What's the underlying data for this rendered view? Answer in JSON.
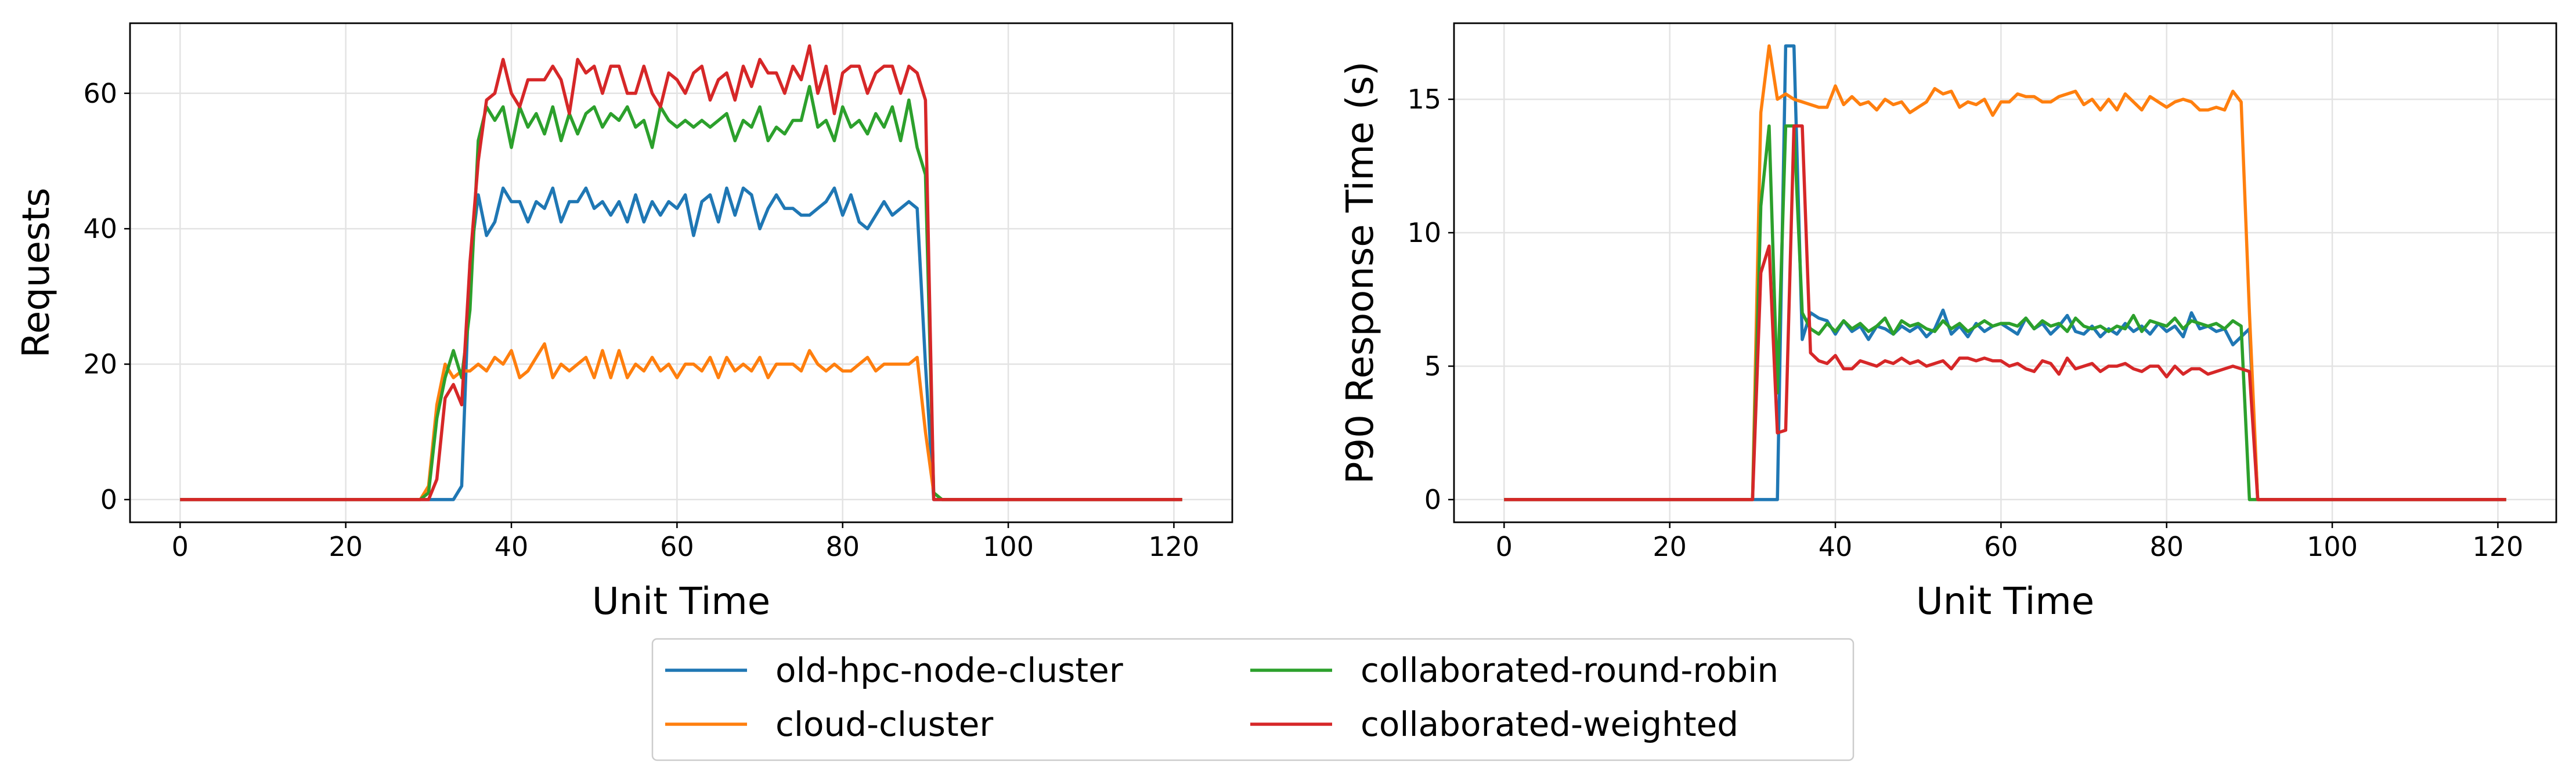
{
  "chart_data": [
    {
      "type": "line",
      "xlabel": "Unit Time",
      "ylabel": "Requests",
      "x": [
        0,
        29,
        30,
        31,
        32,
        33,
        34,
        35,
        36,
        37,
        38,
        39,
        40,
        41,
        42,
        43,
        44,
        45,
        46,
        47,
        48,
        49,
        50,
        51,
        52,
        53,
        54,
        55,
        56,
        57,
        58,
        59,
        60,
        61,
        62,
        63,
        64,
        65,
        66,
        67,
        68,
        69,
        70,
        71,
        72,
        73,
        74,
        75,
        76,
        77,
        78,
        79,
        80,
        81,
        82,
        83,
        84,
        85,
        86,
        87,
        88,
        89,
        90,
        91,
        92,
        121
      ],
      "xlim": [
        -6.05,
        127.05
      ],
      "xticks": [
        0,
        20,
        40,
        60,
        80,
        100,
        120
      ],
      "ylim": [
        -3.35,
        70.35
      ],
      "yticks": [
        0,
        20,
        40,
        60
      ],
      "grid": true,
      "legend": "bottom",
      "series": [
        {
          "name": "old-hpc-node-cluster",
          "color": "#1f77b4",
          "values": [
            0,
            0,
            0,
            0,
            0,
            0,
            2,
            35,
            45,
            39,
            41,
            46,
            44,
            44,
            41,
            44,
            43,
            46,
            41,
            44,
            44,
            46,
            43,
            44,
            42,
            44,
            41,
            45,
            41,
            44,
            42,
            44,
            43,
            45,
            39,
            44,
            45,
            41,
            46,
            42,
            46,
            45,
            40,
            43,
            45,
            43,
            43,
            42,
            42,
            43,
            44,
            46,
            42,
            45,
            41,
            40,
            42,
            44,
            42,
            43,
            44,
            43,
            20,
            0,
            0,
            0
          ]
        },
        {
          "name": "cloud-cluster",
          "color": "#ff7f0e",
          "values": [
            0,
            0,
            2,
            14,
            20,
            18,
            19,
            19,
            20,
            19,
            21,
            20,
            22,
            18,
            19,
            21,
            23,
            18,
            20,
            19,
            20,
            21,
            18,
            22,
            18,
            22,
            18,
            20,
            19,
            21,
            19,
            20,
            18,
            20,
            20,
            19,
            21,
            18,
            21,
            19,
            20,
            19,
            21,
            18,
            20,
            20,
            20,
            19,
            22,
            20,
            19,
            20,
            19,
            19,
            20,
            21,
            19,
            20,
            20,
            20,
            20,
            21,
            10,
            1,
            0,
            0
          ]
        },
        {
          "name": "collaborated-round-robin",
          "color": "#2ca02c",
          "values": [
            0,
            0,
            1,
            12,
            18,
            22,
            18,
            28,
            53,
            58,
            56,
            58,
            52,
            58,
            55,
            57,
            54,
            58,
            53,
            57,
            54,
            57,
            58,
            55,
            57,
            56,
            58,
            55,
            56,
            52,
            58,
            56,
            55,
            56,
            55,
            56,
            55,
            56,
            57,
            53,
            56,
            55,
            58,
            53,
            55,
            54,
            56,
            56,
            61,
            55,
            56,
            53,
            58,
            55,
            56,
            54,
            57,
            55,
            58,
            53,
            59,
            52,
            48,
            1,
            0,
            0
          ]
        },
        {
          "name": "collaborated-weighted",
          "color": "#d62728",
          "values": [
            0,
            0,
            0,
            3,
            15,
            17,
            14,
            35,
            50,
            59,
            60,
            65,
            60,
            58,
            62,
            62,
            62,
            64,
            62,
            57,
            65,
            63,
            64,
            60,
            64,
            64,
            60,
            60,
            64,
            60,
            58,
            63,
            62,
            60,
            63,
            64,
            59,
            62,
            63,
            59,
            64,
            61,
            65,
            63,
            63,
            60,
            64,
            62,
            67,
            60,
            64,
            57,
            63,
            64,
            64,
            60,
            63,
            64,
            64,
            60,
            64,
            63,
            59,
            0,
            0,
            0
          ]
        }
      ]
    },
    {
      "type": "line",
      "xlabel": "Unit Time",
      "ylabel": "P90 Response Time (s)",
      "x": [
        0,
        29,
        30,
        31,
        32,
        33,
        34,
        35,
        36,
        37,
        38,
        39,
        40,
        41,
        42,
        43,
        44,
        45,
        46,
        47,
        48,
        49,
        50,
        51,
        52,
        53,
        54,
        55,
        56,
        57,
        58,
        59,
        60,
        61,
        62,
        63,
        64,
        65,
        66,
        67,
        68,
        69,
        70,
        71,
        72,
        73,
        74,
        75,
        76,
        77,
        78,
        79,
        80,
        81,
        82,
        83,
        84,
        85,
        86,
        87,
        88,
        89,
        90,
        91,
        92,
        121
      ],
      "xlim": [
        -6.05,
        127.05
      ],
      "xticks": [
        0,
        20,
        40,
        60,
        80,
        100,
        120
      ],
      "ylim": [
        -0.85,
        17.85
      ],
      "yticks": [
        0,
        5,
        10,
        15
      ],
      "grid": true,
      "series": [
        {
          "name": "old-hpc-node-cluster",
          "color": "#1f77b4",
          "values": [
            0,
            0,
            0,
            0,
            0,
            0,
            17,
            17,
            6,
            7,
            6.8,
            6.7,
            6.2,
            6.7,
            6.3,
            6.5,
            6.0,
            6.5,
            6.4,
            6.2,
            6.5,
            6.3,
            6.5,
            6.1,
            6.4,
            7.1,
            6.2,
            6.5,
            6.1,
            6.6,
            6.3,
            6.5,
            6.6,
            6.4,
            6.2,
            6.8,
            6.4,
            6.6,
            6.2,
            6.5,
            6.9,
            6.3,
            6.2,
            6.5,
            6.1,
            6.4,
            6.2,
            6.6,
            6.3,
            6.5,
            6.2,
            6.6,
            6.3,
            6.5,
            6.1,
            7.0,
            6.4,
            6.5,
            6.3,
            6.4,
            5.8,
            6.1,
            6.4,
            0,
            0,
            0
          ]
        },
        {
          "name": "cloud-cluster",
          "color": "#ff7f0e",
          "values": [
            0,
            0,
            0,
            14.5,
            17,
            15,
            15.2,
            15,
            14.9,
            14.8,
            14.7,
            14.7,
            15.5,
            14.8,
            15.1,
            14.8,
            14.9,
            14.6,
            15.0,
            14.8,
            14.9,
            14.5,
            14.7,
            14.9,
            15.4,
            15.2,
            15.3,
            14.7,
            14.9,
            14.8,
            15.0,
            14.4,
            14.9,
            14.9,
            15.2,
            15.1,
            15.1,
            14.9,
            14.9,
            15.1,
            15.2,
            15.3,
            14.8,
            15.0,
            14.6,
            15.0,
            14.6,
            15.2,
            14.9,
            14.6,
            15.1,
            14.9,
            14.7,
            14.9,
            15.0,
            14.9,
            14.6,
            14.6,
            14.7,
            14.6,
            15.3,
            14.9,
            7,
            0,
            0,
            0
          ]
        },
        {
          "name": "collaborated-round-robin",
          "color": "#2ca02c",
          "values": [
            0,
            0,
            0,
            11,
            14,
            4,
            14,
            14,
            7,
            6.4,
            6.2,
            6.6,
            6.3,
            6.7,
            6.4,
            6.6,
            6.3,
            6.5,
            6.8,
            6.2,
            6.7,
            6.5,
            6.6,
            6.4,
            6.3,
            6.7,
            6.4,
            6.6,
            6.3,
            6.5,
            6.7,
            6.5,
            6.6,
            6.6,
            6.5,
            6.8,
            6.4,
            6.7,
            6.5,
            6.6,
            6.3,
            6.8,
            6.5,
            6.4,
            6.5,
            6.3,
            6.5,
            6.4,
            6.9,
            6.3,
            6.7,
            6.6,
            6.5,
            6.8,
            6.4,
            6.7,
            6.6,
            6.5,
            6.6,
            6.4,
            6.7,
            6.5,
            0,
            0,
            0,
            0
          ]
        },
        {
          "name": "collaborated-weighted",
          "color": "#d62728",
          "values": [
            0,
            0,
            0,
            8.5,
            9.5,
            2.5,
            2.6,
            14,
            14,
            5.5,
            5.2,
            5.1,
            5.4,
            4.9,
            4.9,
            5.2,
            5.1,
            5.0,
            5.2,
            5.1,
            5.3,
            5.1,
            5.2,
            5.0,
            5.1,
            5.2,
            4.9,
            5.3,
            5.3,
            5.2,
            5.3,
            5.2,
            5.2,
            5.0,
            5.1,
            4.9,
            4.8,
            5.2,
            5.1,
            4.7,
            5.3,
            4.9,
            5.0,
            5.1,
            4.8,
            5.0,
            5.0,
            5.1,
            4.9,
            4.8,
            5.0,
            5.0,
            4.6,
            5.0,
            4.7,
            4.9,
            4.9,
            4.7,
            4.8,
            4.9,
            5.0,
            4.9,
            4.8,
            0,
            0,
            0
          ]
        }
      ]
    }
  ]
}
